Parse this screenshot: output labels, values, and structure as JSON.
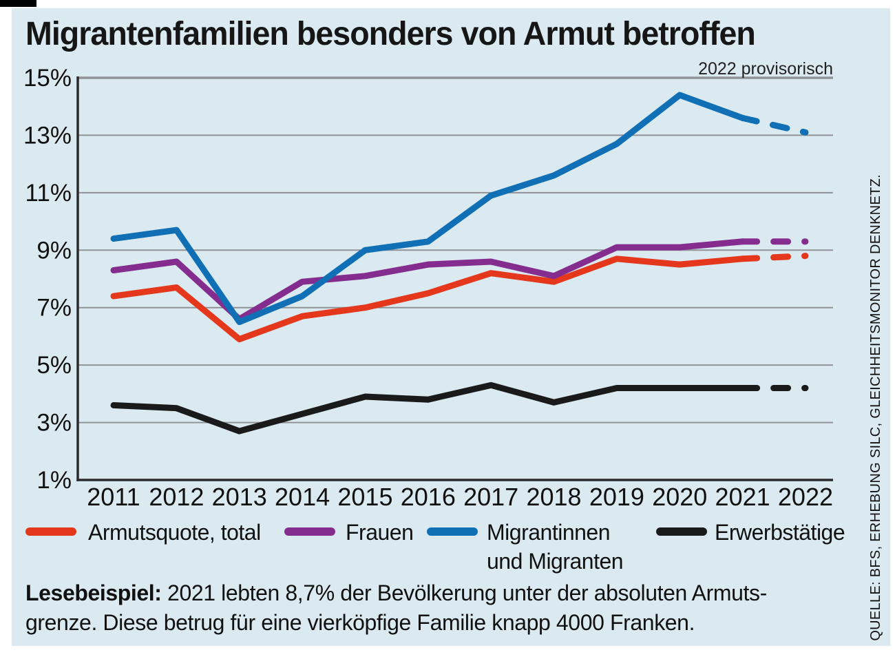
{
  "header": {
    "title": "Migrantenfamilien besonders von Armut betroffen",
    "note": "2022 provisorisch"
  },
  "chart_data": {
    "type": "line",
    "x_labels": [
      "2011",
      "2012",
      "2013",
      "2014",
      "2015",
      "2016",
      "2017",
      "2018",
      "2019",
      "2020",
      "2021",
      "2022"
    ],
    "ylim": [
      1,
      15
    ],
    "yticks": [
      {
        "value": 15,
        "label": "15%"
      },
      {
        "value": 13,
        "label": "13%"
      },
      {
        "value": 11,
        "label": "11%"
      },
      {
        "value": 9,
        "label": "9%"
      },
      {
        "value": 7,
        "label": "7%"
      },
      {
        "value": 5,
        "label": "5%"
      },
      {
        "value": 3,
        "label": "3%"
      },
      {
        "value": 1,
        "label": "1%"
      }
    ],
    "grid": true,
    "legend_position": "bottom",
    "dashed_from_index": 10,
    "dashed_meaning": "2022 provisorisch",
    "series": [
      {
        "name": "Armutsquote, total",
        "color": "#e5371c",
        "values": [
          7.4,
          7.7,
          5.9,
          6.7,
          7.0,
          7.5,
          8.2,
          7.9,
          8.7,
          8.5,
          8.7,
          8.8
        ]
      },
      {
        "name": "Frauen",
        "color": "#842d8f",
        "values": [
          8.3,
          8.6,
          6.6,
          7.9,
          8.1,
          8.5,
          8.6,
          8.1,
          9.1,
          9.1,
          9.3,
          9.3
        ]
      },
      {
        "name": "Migrantinnen und Migranten",
        "color": "#1170b5",
        "values": [
          9.4,
          9.7,
          6.5,
          7.4,
          9.0,
          9.3,
          10.9,
          11.6,
          12.7,
          14.4,
          13.6,
          13.1
        ]
      },
      {
        "name": "Erwerbstätige",
        "color": "#1a1a1a",
        "values": [
          3.6,
          3.5,
          2.7,
          3.3,
          3.9,
          3.8,
          4.3,
          3.7,
          4.2,
          4.2,
          4.2,
          4.2
        ]
      }
    ]
  },
  "legend": {
    "items": [
      {
        "label": "Armutsquote, total",
        "label2": "",
        "color": "#e5371c"
      },
      {
        "label": "Frauen",
        "label2": "",
        "color": "#842d8f"
      },
      {
        "label": "Migrantinnen",
        "label2": "und Migranten",
        "color": "#1170b5"
      },
      {
        "label": "Erwerbstätige",
        "label2": "",
        "color": "#1a1a1a"
      }
    ]
  },
  "footnote": {
    "lead": "Lesebeispiel:",
    "line1_rest": " 2021 lebten 8,7% der Bevölkerung unter der absoluten Armuts-",
    "line2": "grenze. Diese betrug für eine vierköpfige Familie knapp 4000 Franken."
  },
  "source": "QUELLE: BFS, ERHEBUNG SILC, GLEICHHEITSMONITOR DENKNETZ.",
  "colors": {
    "panel_background": "#daeaf0",
    "gridline": "#8f9396",
    "axis": "#2a2a2a",
    "text": "#111111"
  }
}
